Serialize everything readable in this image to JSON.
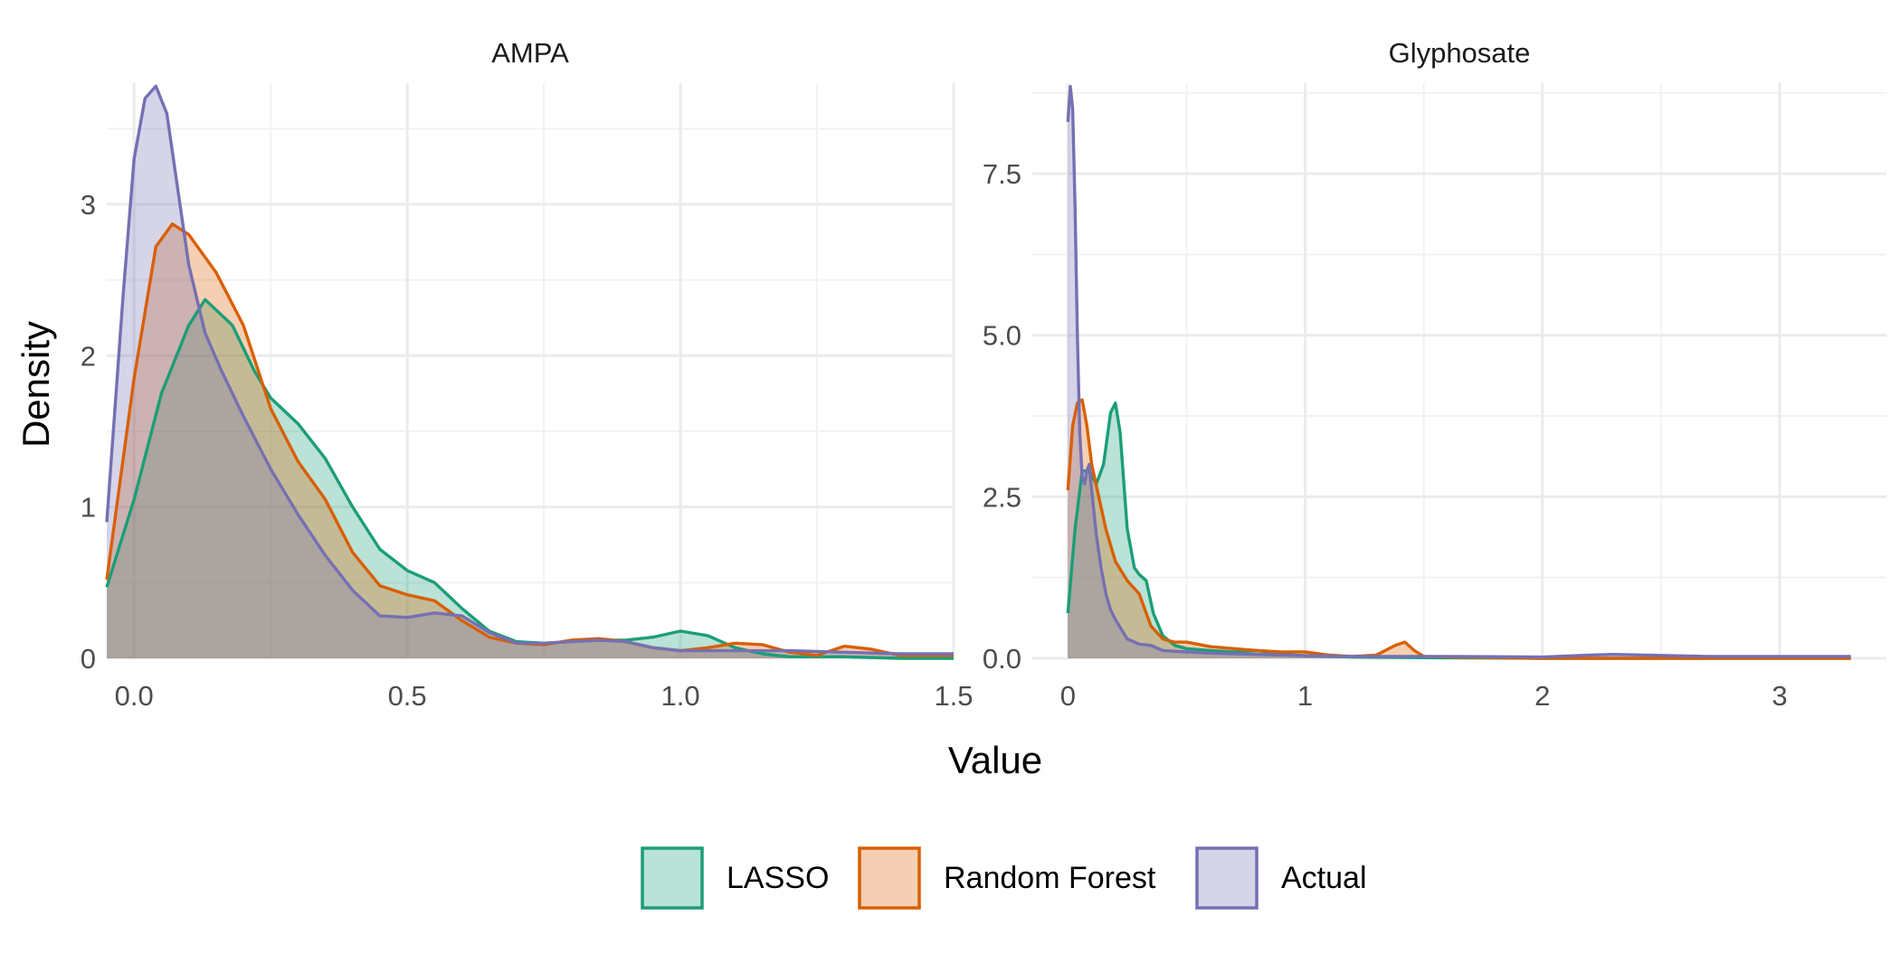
{
  "figure": {
    "xlabel": "Value",
    "ylabel": "Density"
  },
  "legend": {
    "position": "bottom",
    "items": [
      {
        "label": "LASSO",
        "color": "#1b9e77"
      },
      {
        "label": "Random Forest",
        "color": "#d95f02"
      },
      {
        "label": "Actual",
        "color": "#7570b3"
      }
    ]
  },
  "chart_data": [
    {
      "type": "area",
      "title": "AMPA",
      "xlim": [
        -0.05,
        1.5
      ],
      "ylim": [
        0,
        3.8
      ],
      "xticks": [
        0.0,
        0.5,
        1.0,
        1.5
      ],
      "xtick_labels": [
        "0.0",
        "0.5",
        "1.0",
        "1.5"
      ],
      "yticks": [
        0,
        1,
        2,
        3
      ],
      "ytick_labels": [
        "0",
        "1",
        "2",
        "3"
      ],
      "grid": true,
      "series": [
        {
          "name": "LASSO",
          "color": "#1b9e77",
          "x": [
            -0.05,
            0.0,
            0.05,
            0.1,
            0.13,
            0.18,
            0.22,
            0.25,
            0.3,
            0.35,
            0.4,
            0.45,
            0.5,
            0.55,
            0.6,
            0.65,
            0.7,
            0.75,
            0.8,
            0.85,
            0.9,
            0.95,
            1.0,
            1.05,
            1.1,
            1.15,
            1.2,
            1.3,
            1.4,
            1.5
          ],
          "y": [
            0.47,
            1.05,
            1.75,
            2.2,
            2.37,
            2.2,
            1.9,
            1.72,
            1.55,
            1.32,
            1.0,
            0.72,
            0.58,
            0.5,
            0.33,
            0.18,
            0.11,
            0.1,
            0.11,
            0.12,
            0.12,
            0.14,
            0.18,
            0.15,
            0.07,
            0.03,
            0.01,
            0.01,
            0.0,
            0.0
          ]
        },
        {
          "name": "Random Forest",
          "color": "#d95f02",
          "x": [
            -0.05,
            0.0,
            0.04,
            0.07,
            0.1,
            0.15,
            0.2,
            0.25,
            0.3,
            0.35,
            0.4,
            0.45,
            0.5,
            0.55,
            0.6,
            0.65,
            0.7,
            0.75,
            0.8,
            0.85,
            0.9,
            0.95,
            1.0,
            1.05,
            1.1,
            1.15,
            1.2,
            1.25,
            1.3,
            1.35,
            1.4,
            1.5
          ],
          "y": [
            0.52,
            1.85,
            2.72,
            2.87,
            2.8,
            2.55,
            2.2,
            1.65,
            1.3,
            1.05,
            0.7,
            0.48,
            0.42,
            0.38,
            0.25,
            0.14,
            0.1,
            0.09,
            0.12,
            0.13,
            0.11,
            0.07,
            0.05,
            0.07,
            0.1,
            0.09,
            0.04,
            0.02,
            0.08,
            0.06,
            0.02,
            0.02
          ]
        },
        {
          "name": "Actual",
          "color": "#7570b3",
          "x": [
            -0.05,
            -0.02,
            0.0,
            0.02,
            0.04,
            0.06,
            0.08,
            0.1,
            0.13,
            0.16,
            0.2,
            0.25,
            0.3,
            0.35,
            0.4,
            0.45,
            0.5,
            0.55,
            0.6,
            0.65,
            0.7,
            0.75,
            0.8,
            0.85,
            0.9,
            0.95,
            1.0,
            1.1,
            1.2,
            1.3,
            1.4,
            1.5
          ],
          "y": [
            0.9,
            2.4,
            3.3,
            3.7,
            3.78,
            3.6,
            3.1,
            2.6,
            2.15,
            1.9,
            1.6,
            1.25,
            0.95,
            0.68,
            0.45,
            0.28,
            0.27,
            0.3,
            0.28,
            0.17,
            0.1,
            0.1,
            0.11,
            0.12,
            0.11,
            0.07,
            0.05,
            0.05,
            0.05,
            0.04,
            0.03,
            0.03
          ]
        }
      ]
    },
    {
      "type": "area",
      "title": "Glyphosate",
      "xlim": [
        -0.15,
        3.45
      ],
      "ylim": [
        0,
        8.9
      ],
      "xticks": [
        0,
        1,
        2,
        3
      ],
      "xtick_labels": [
        "0",
        "1",
        "2",
        "3"
      ],
      "yticks": [
        0.0,
        2.5,
        5.0,
        7.5
      ],
      "ytick_labels": [
        "0.0",
        "2.5",
        "5.0",
        "7.5"
      ],
      "grid": true,
      "series": [
        {
          "name": "LASSO",
          "color": "#1b9e77",
          "x": [
            0.0,
            0.03,
            0.06,
            0.09,
            0.12,
            0.15,
            0.18,
            0.2,
            0.22,
            0.25,
            0.28,
            0.3,
            0.33,
            0.36,
            0.4,
            0.45,
            0.5,
            0.6,
            0.7,
            0.8,
            0.9,
            1.0,
            1.2,
            1.5,
            2.0,
            2.5,
            3.0,
            3.3
          ],
          "y": [
            0.7,
            2.0,
            2.9,
            2.9,
            2.7,
            3.0,
            3.8,
            3.95,
            3.5,
            2.0,
            1.4,
            1.3,
            1.2,
            0.7,
            0.35,
            0.2,
            0.15,
            0.12,
            0.1,
            0.12,
            0.06,
            0.04,
            0.02,
            0.01,
            0.0,
            0.0,
            0.0,
            0.0
          ]
        },
        {
          "name": "Random Forest",
          "color": "#d95f02",
          "x": [
            0.0,
            0.02,
            0.04,
            0.06,
            0.08,
            0.1,
            0.13,
            0.16,
            0.2,
            0.25,
            0.3,
            0.35,
            0.4,
            0.45,
            0.5,
            0.6,
            0.7,
            0.8,
            0.9,
            1.0,
            1.1,
            1.2,
            1.3,
            1.38,
            1.42,
            1.46,
            1.5,
            1.6,
            1.8,
            2.0,
            2.5,
            3.0,
            3.3
          ],
          "y": [
            2.6,
            3.6,
            3.95,
            4.0,
            3.6,
            3.0,
            2.5,
            2.0,
            1.5,
            1.2,
            1.0,
            0.5,
            0.3,
            0.25,
            0.25,
            0.18,
            0.15,
            0.12,
            0.1,
            0.1,
            0.05,
            0.03,
            0.05,
            0.2,
            0.25,
            0.12,
            0.03,
            0.02,
            0.01,
            0.0,
            0.0,
            0.0,
            0.0
          ]
        },
        {
          "name": "Actual",
          "color": "#7570b3",
          "x": [
            0.0,
            0.01,
            0.02,
            0.03,
            0.04,
            0.05,
            0.06,
            0.07,
            0.08,
            0.09,
            0.1,
            0.12,
            0.14,
            0.16,
            0.18,
            0.2,
            0.25,
            0.3,
            0.35,
            0.4,
            0.5,
            0.6,
            0.8,
            1.0,
            1.2,
            1.6,
            2.0,
            2.2,
            2.3,
            2.7,
            3.2,
            3.3
          ],
          "y": [
            8.3,
            8.85,
            8.5,
            7.0,
            5.0,
            3.5,
            2.8,
            2.7,
            2.9,
            3.0,
            2.6,
            1.9,
            1.4,
            1.0,
            0.75,
            0.6,
            0.3,
            0.22,
            0.2,
            0.12,
            0.1,
            0.08,
            0.06,
            0.04,
            0.03,
            0.03,
            0.02,
            0.05,
            0.06,
            0.03,
            0.03,
            0.03
          ]
        }
      ]
    }
  ]
}
